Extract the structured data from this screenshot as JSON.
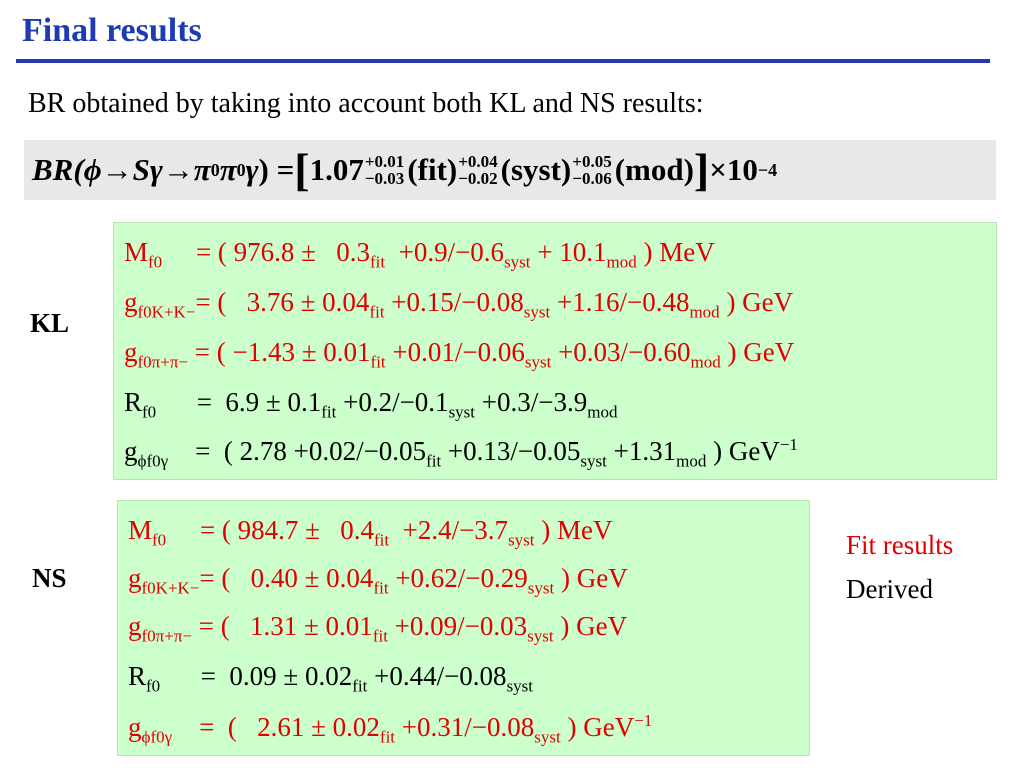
{
  "title": "Final results",
  "intro": "BR obtained by taking into account both KL and NS results:",
  "formula": {
    "lhs_br": "BR(",
    "lhs_phi": "ϕ",
    "arrow1": " → ",
    "lhs_s": "Sγ",
    "arrow2": " → ",
    "lhs_pi1": "π",
    "sup_zero1": "0",
    "lhs_pi2": "π",
    "sup_zero2": "0",
    "lhs_gamma": "γ",
    "lhs_close": ") = ",
    "open_bracket": "[",
    "value": "1.07",
    "fit_plus": "+0.01",
    "fit_minus": "−0.03",
    "fit_label": "(fit)",
    "syst_plus": "+0.04",
    "syst_minus": "−0.02",
    "syst_label": "(syst)",
    "mod_plus": "+0.05",
    "mod_minus": "−0.06",
    "mod_label": "(mod)",
    "close_bracket": "]",
    "times": "×10",
    "exponent": "−4"
  },
  "kl": {
    "label": "KL",
    "rows": [
      {
        "sym": "M",
        "sub": "f0",
        "text1": "     = ( 976.8 ±   0.3",
        "sub1": "fit",
        "text2": "  +0.9/−0.6",
        "sub2": "syst",
        "text3": " + 10.1",
        "sub3": "mod",
        "text4": " ) MeV"
      },
      {
        "sym": "g",
        "sub": "f0K+K−",
        "text1": "= (   3.76 ± 0.04",
        "sub1": "fit",
        "text2": " +0.15/−0.08",
        "sub2": "syst",
        "text3": " +1.16/−0.48",
        "sub3": "mod",
        "text4": " ) GeV"
      },
      {
        "sym": "g",
        "sub": "f0π+π−",
        "text1": " = ( −1.43 ± 0.01",
        "sub1": "fit",
        "text2": " +0.01/−0.06",
        "sub2": "syst",
        "text3": " +0.03/−0.60",
        "sub3": "mod",
        "text4": " ) GeV"
      },
      {
        "sym": "R",
        "sub": "f0",
        "text1": "      =  6.9 ± 0.1",
        "sub1": "fit",
        "text2": " +0.2/−0.1",
        "sub2": "syst",
        "text3": " +0.3/−3.9",
        "sub3": "mod",
        "text4": ""
      },
      {
        "sym": "g",
        "sub": "ϕf0γ",
        "text1": "    =  ( 2.78 +0.02/−0.05",
        "sub1": "fit",
        "text2": " +0.13/−0.05",
        "sub2": "syst",
        "text3": " +1.31",
        "sub3": "mod",
        "text4": " ) GeV",
        "sup": "−1"
      }
    ]
  },
  "ns": {
    "label": "NS",
    "rows": [
      {
        "sym": "M",
        "sub": "f0",
        "text1": "     = ( 984.7 ±   0.4",
        "sub1": "fit",
        "text2": "  +2.4/−3.7",
        "sub2": "syst",
        "text3": " ) MeV"
      },
      {
        "sym": "g",
        "sub": "f0K+K−",
        "text1": "= (   0.40 ± 0.04",
        "sub1": "fit",
        "text2": " +0.62/−0.29",
        "sub2": "syst",
        "text3": " ) GeV"
      },
      {
        "sym": "g",
        "sub": "f0π+π−",
        "text1": " = (   1.31 ± 0.01",
        "sub1": "fit",
        "text2": " +0.09/−0.03",
        "sub2": "syst",
        "text3": " ) GeV"
      },
      {
        "sym": "R",
        "sub": "f0",
        "text1": "      =  0.09 ± 0.02",
        "sub1": "fit",
        "text2": " +0.44/−0.08",
        "sub2": "syst",
        "text3": ""
      },
      {
        "sym": "g",
        "sub": "ϕf0γ",
        "text1": "    =  (   2.61 ± 0.02",
        "sub1": "fit",
        "text2": " +0.31/−0.08",
        "sub2": "syst",
        "text3": " ) GeV",
        "sup": "−1"
      }
    ]
  },
  "legend": {
    "fit": "Fit results",
    "derived": "Derived"
  },
  "colors": {
    "title": "#1f3bb3",
    "fit_results": "#e00000",
    "derived": "#000000",
    "box_green": "#ccffcc",
    "formula_bg": "#e8e8e8"
  }
}
